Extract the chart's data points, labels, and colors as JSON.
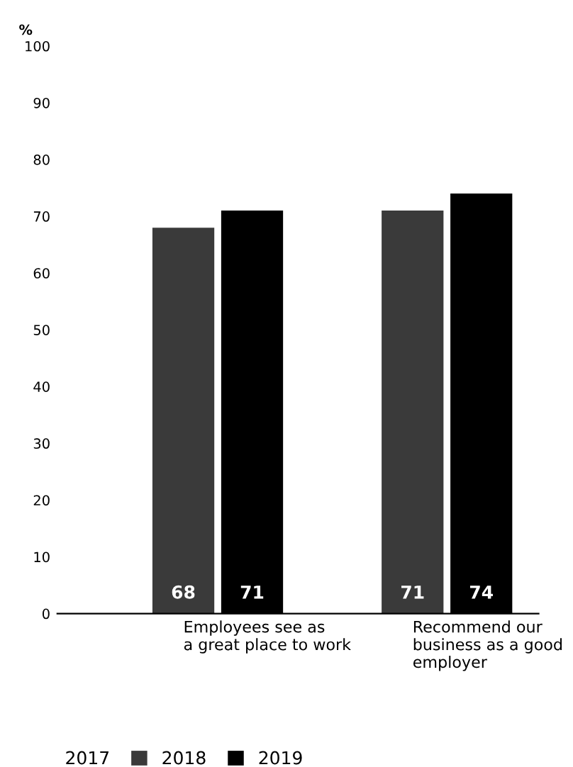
{
  "chart_data": {
    "type": "bar",
    "ylabel": "%",
    "categories": [
      "Employees see as\na great place to work",
      "Recommend our\nbusiness as a good\nemployer"
    ],
    "series": [
      {
        "name": "2017",
        "values": [
          null,
          null
        ]
      },
      {
        "name": "2018",
        "color": "#3a3a3a",
        "values": [
          68,
          71
        ]
      },
      {
        "name": "2019",
        "color": "#000000",
        "values": [
          71,
          74
        ]
      }
    ],
    "ylim": [
      0,
      100
    ],
    "yticks": [
      0,
      10,
      20,
      30,
      40,
      50,
      60,
      70,
      80,
      90,
      100
    ],
    "data_labels": true,
    "legend": "bottom",
    "grid": false
  }
}
